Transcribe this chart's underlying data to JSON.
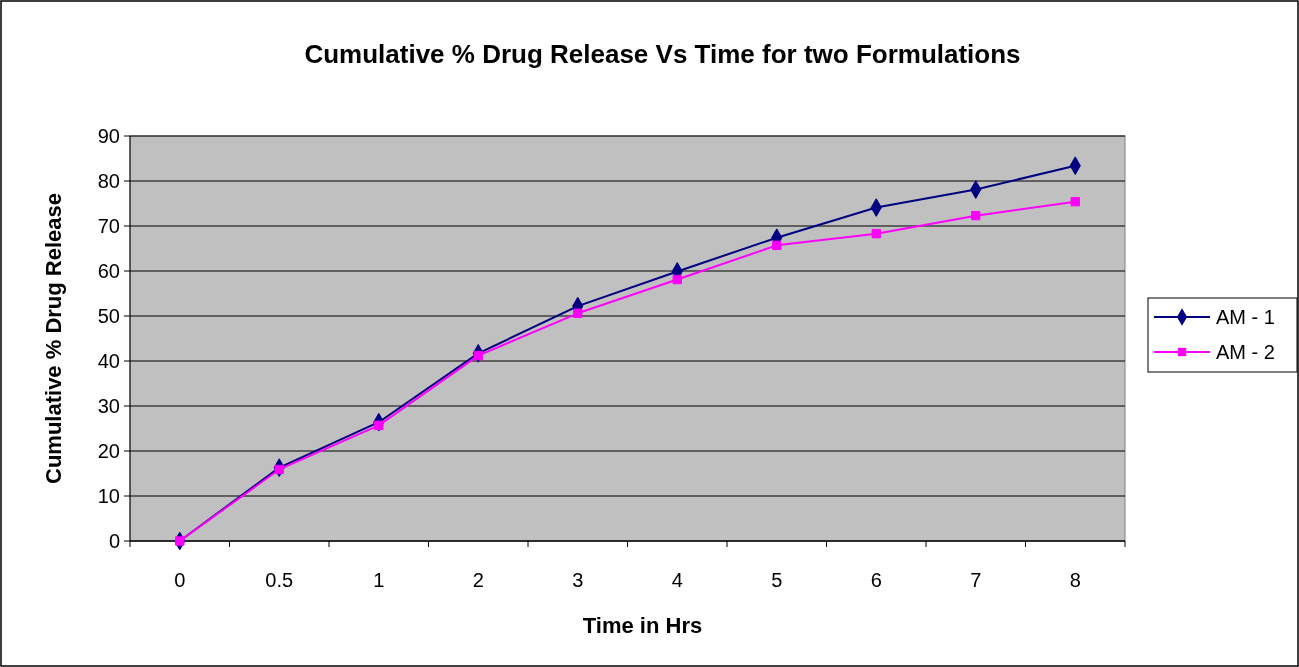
{
  "chart_data": {
    "type": "line",
    "title": "Cumulative % Drug Release Vs Time for two Formulations",
    "xlabel": "Time in Hrs",
    "ylabel": "Cumulative % Drug Release",
    "categories": [
      "0",
      "0.5",
      "1",
      "2",
      "3",
      "4",
      "5",
      "6",
      "7",
      "8"
    ],
    "series": [
      {
        "name": "AM - 1",
        "color": "#000080",
        "marker": "diamond",
        "values": [
          0,
          16.3,
          26.4,
          41.7,
          52.2,
          59.9,
          67.4,
          74.1,
          78.1,
          83.4
        ]
      },
      {
        "name": "AM - 2",
        "color": "#ff00ff",
        "marker": "square",
        "values": [
          0,
          15.9,
          25.7,
          41.2,
          50.6,
          58.1,
          65.7,
          68.3,
          72.3,
          75.4
        ]
      }
    ],
    "ylim": [
      0,
      90
    ],
    "yticks": [
      0,
      10,
      20,
      30,
      40,
      50,
      60,
      70,
      80,
      90
    ],
    "grid": "y",
    "legend": "right"
  }
}
